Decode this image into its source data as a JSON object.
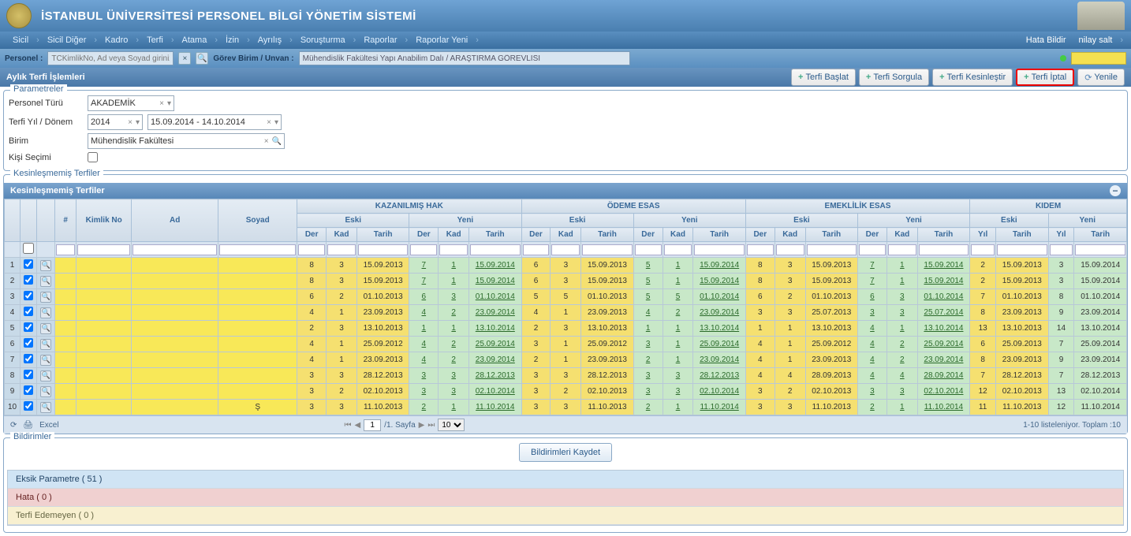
{
  "header": {
    "title": "İSTANBUL ÜNİVERSİTESİ PERSONEL BİLGİ YÖNETİM SİSTEMİ"
  },
  "nav": {
    "items": [
      "Sicil",
      "Sicil Diğer",
      "Kadro",
      "Terfi",
      "Atama",
      "İzin",
      "Ayrılış",
      "Soruşturma",
      "Raporlar",
      "Raporlar Yeni"
    ],
    "rightA": "Hata Bildir",
    "rightB": "nilay salt"
  },
  "searchbar": {
    "labelPersonel": "Personel :",
    "personelPlaceholder": "TCKimlikNo, Ad veya Soyad giriniz",
    "labelGorev": "Görev Birim / Unvan :",
    "gorevValue": "Mühendislik Fakültesi Yapı Anabilim Dalı / ARAŞTIRMA GÖREVLİSİ"
  },
  "panel": {
    "title": "Aylık Terfi İşlemleri",
    "actions": {
      "baslat": "Terfi Başlat",
      "sorgula": "Terfi Sorgula",
      "kesinlestir": "Terfi Kesinleştir",
      "iptal": "Terfi İptal",
      "yenile": "Yenile"
    }
  },
  "params": {
    "legend": "Parametreler",
    "personelTuruLabel": "Personel Türü",
    "personelTuruValue": "AKADEMİK",
    "terfiYilLabel": "Terfi Yıl / Dönem",
    "terfiYilValue": "2014",
    "terfiTarihValue": "15.09.2014 - 14.10.2014",
    "birimLabel": "Birim",
    "birimValue": "Mühendislik Fakültesi",
    "kisiSecimiLabel": "Kişi Seçimi"
  },
  "sub": {
    "legendOuter": "Kesinleşmemiş Terfiler",
    "barTitle": "Kesinleşmemiş Terfiler"
  },
  "grid": {
    "groups": {
      "kazanilmis": "KAZANILMIŞ HAK",
      "odeme": "ÖDEME ESAS",
      "emeklilik": "EMEKLİLİK ESAS",
      "kidem": "KIDEM"
    },
    "sub": {
      "eski": "Eski",
      "yeni": "Yeni"
    },
    "cols": {
      "num": "#",
      "kimlik": "Kimlik No",
      "ad": "Ad",
      "soyad": "Soyad",
      "der": "Der",
      "kad": "Kad",
      "tarih": "Tarih",
      "yil": "Yıl"
    },
    "rows": [
      {
        "n": 1,
        "kh": {
          "e": [
            "8",
            "3",
            "15.09.2013"
          ],
          "y": [
            "7",
            "1",
            "15.09.2014"
          ]
        },
        "oe": {
          "e": [
            "6",
            "3",
            "15.09.2013"
          ],
          "y": [
            "5",
            "1",
            "15.09.2014"
          ]
        },
        "ee": {
          "e": [
            "8",
            "3",
            "15.09.2013"
          ],
          "y": [
            "7",
            "1",
            "15.09.2014"
          ]
        },
        "ki": {
          "e": [
            "2",
            "15.09.2013"
          ],
          "y": [
            "3",
            "15.09.2014"
          ]
        }
      },
      {
        "n": 2,
        "kh": {
          "e": [
            "8",
            "3",
            "15.09.2013"
          ],
          "y": [
            "7",
            "1",
            "15.09.2014"
          ]
        },
        "oe": {
          "e": [
            "6",
            "3",
            "15.09.2013"
          ],
          "y": [
            "5",
            "1",
            "15.09.2014"
          ]
        },
        "ee": {
          "e": [
            "8",
            "3",
            "15.09.2013"
          ],
          "y": [
            "7",
            "1",
            "15.09.2014"
          ]
        },
        "ki": {
          "e": [
            "2",
            "15.09.2013"
          ],
          "y": [
            "3",
            "15.09.2014"
          ]
        }
      },
      {
        "n": 3,
        "kh": {
          "e": [
            "6",
            "2",
            "01.10.2013"
          ],
          "y": [
            "6",
            "3",
            "01.10.2014"
          ]
        },
        "oe": {
          "e": [
            "5",
            "5",
            "01.10.2013"
          ],
          "y": [
            "5",
            "5",
            "01.10.2014"
          ]
        },
        "ee": {
          "e": [
            "6",
            "2",
            "01.10.2013"
          ],
          "y": [
            "6",
            "3",
            "01.10.2014"
          ]
        },
        "ki": {
          "e": [
            "7",
            "01.10.2013"
          ],
          "y": [
            "8",
            "01.10.2014"
          ]
        }
      },
      {
        "n": 4,
        "kh": {
          "e": [
            "4",
            "1",
            "23.09.2013"
          ],
          "y": [
            "4",
            "2",
            "23.09.2014"
          ]
        },
        "oe": {
          "e": [
            "4",
            "1",
            "23.09.2013"
          ],
          "y": [
            "4",
            "2",
            "23.09.2014"
          ]
        },
        "ee": {
          "e": [
            "3",
            "3",
            "25.07.2013"
          ],
          "y": [
            "3",
            "3",
            "25.07.2014"
          ]
        },
        "ki": {
          "e": [
            "8",
            "23.09.2013"
          ],
          "y": [
            "9",
            "23.09.2014"
          ]
        }
      },
      {
        "n": 5,
        "kh": {
          "e": [
            "2",
            "3",
            "13.10.2013"
          ],
          "y": [
            "1",
            "1",
            "13.10.2014"
          ]
        },
        "oe": {
          "e": [
            "2",
            "3",
            "13.10.2013"
          ],
          "y": [
            "1",
            "1",
            "13.10.2014"
          ]
        },
        "ee": {
          "e": [
            "1",
            "1",
            "13.10.2013"
          ],
          "y": [
            "4",
            "1",
            "13.10.2014"
          ]
        },
        "ki": {
          "e": [
            "13",
            "13.10.2013"
          ],
          "y": [
            "14",
            "13.10.2014"
          ]
        }
      },
      {
        "n": 6,
        "kh": {
          "e": [
            "4",
            "1",
            "25.09.2012"
          ],
          "y": [
            "4",
            "2",
            "25.09.2014"
          ]
        },
        "oe": {
          "e": [
            "3",
            "1",
            "25.09.2012"
          ],
          "y": [
            "3",
            "1",
            "25.09.2014"
          ]
        },
        "ee": {
          "e": [
            "4",
            "1",
            "25.09.2012"
          ],
          "y": [
            "4",
            "2",
            "25.09.2014"
          ]
        },
        "ki": {
          "e": [
            "6",
            "25.09.2013"
          ],
          "y": [
            "7",
            "25.09.2014"
          ]
        }
      },
      {
        "n": 7,
        "kh": {
          "e": [
            "4",
            "1",
            "23.09.2013"
          ],
          "y": [
            "4",
            "2",
            "23.09.2014"
          ]
        },
        "oe": {
          "e": [
            "2",
            "1",
            "23.09.2013"
          ],
          "y": [
            "2",
            "1",
            "23.09.2014"
          ]
        },
        "ee": {
          "e": [
            "4",
            "1",
            "23.09.2013"
          ],
          "y": [
            "4",
            "2",
            "23.09.2014"
          ]
        },
        "ki": {
          "e": [
            "8",
            "23.09.2013"
          ],
          "y": [
            "9",
            "23.09.2014"
          ]
        }
      },
      {
        "n": 8,
        "kh": {
          "e": [
            "3",
            "3",
            "28.12.2013"
          ],
          "y": [
            "3",
            "3",
            "28.12.2013"
          ]
        },
        "oe": {
          "e": [
            "3",
            "3",
            "28.12.2013"
          ],
          "y": [
            "3",
            "3",
            "28.12.2013"
          ]
        },
        "ee": {
          "e": [
            "4",
            "4",
            "28.09.2013"
          ],
          "y": [
            "4",
            "4",
            "28.09.2014"
          ]
        },
        "ki": {
          "e": [
            "7",
            "28.12.2013"
          ],
          "y": [
            "7",
            "28.12.2013"
          ]
        }
      },
      {
        "n": 9,
        "kh": {
          "e": [
            "3",
            "2",
            "02.10.2013"
          ],
          "y": [
            "3",
            "3",
            "02.10.2014"
          ]
        },
        "oe": {
          "e": [
            "3",
            "2",
            "02.10.2013"
          ],
          "y": [
            "3",
            "3",
            "02.10.2014"
          ]
        },
        "ee": {
          "e": [
            "3",
            "2",
            "02.10.2013"
          ],
          "y": [
            "3",
            "3",
            "02.10.2014"
          ]
        },
        "ki": {
          "e": [
            "12",
            "02.10.2013"
          ],
          "y": [
            "13",
            "02.10.2014"
          ]
        }
      },
      {
        "n": 10,
        "kh": {
          "e": [
            "3",
            "3",
            "11.10.2013"
          ],
          "y": [
            "2",
            "1",
            "11.10.2014"
          ]
        },
        "oe": {
          "e": [
            "3",
            "3",
            "11.10.2013"
          ],
          "y": [
            "2",
            "1",
            "11.10.2014"
          ]
        },
        "ee": {
          "e": [
            "3",
            "3",
            "11.10.2013"
          ],
          "y": [
            "2",
            "1",
            "11.10.2014"
          ]
        },
        "ki": {
          "e": [
            "11",
            "11.10.2013"
          ],
          "y": [
            "12",
            "11.10.2014"
          ]
        }
      }
    ],
    "footer": {
      "excel": "Excel",
      "pageInput": "1",
      "pageSuffix": "/1. Sayfa",
      "pageSizeOptions": [
        "10"
      ],
      "total": "1-10 listeleniyor. Toplam :10"
    }
  },
  "notif": {
    "legend": "Bildirimler",
    "saveBtn": "Bildirimleri Kaydet",
    "rows": [
      {
        "class": "blue",
        "text": "Eksik Parametre ( 51 )"
      },
      {
        "class": "red",
        "text": "Hata ( 0 )"
      },
      {
        "class": "yellow",
        "text": "Terfi Edemeyen ( 0 )"
      }
    ]
  },
  "colors": {
    "headerGradA": "#6fa3d4",
    "headerGradB": "#4a7fb0",
    "navGradA": "#5a8fc0",
    "navGradB": "#3a6fa0",
    "highlightRed": "#e00",
    "eskiBg": "#f5e070",
    "yeniBg": "#c8e8c8",
    "maskBg": "#f8e858"
  }
}
